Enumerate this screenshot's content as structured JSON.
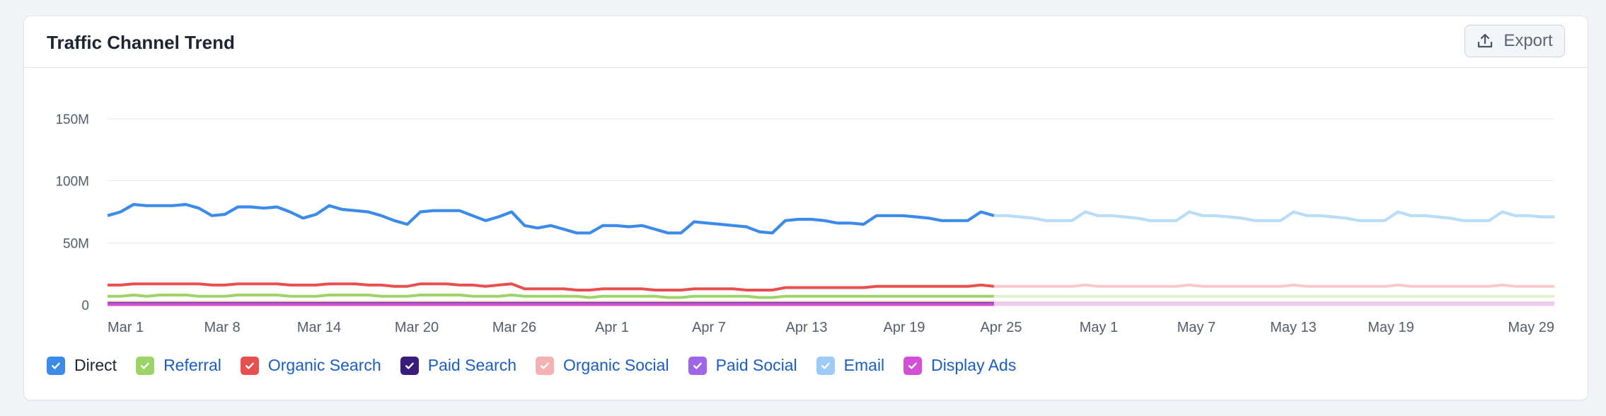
{
  "card": {
    "title": "Traffic Channel Trend",
    "export_label": "Export"
  },
  "chart_data": {
    "type": "line",
    "title": "Traffic Channel Trend",
    "xlabel": "",
    "ylabel": "",
    "ylim": [
      0,
      150000000
    ],
    "y_ticks": [
      "0",
      "50M",
      "100M",
      "150M"
    ],
    "x_ticks": [
      "Mar 1",
      "Mar 8",
      "Mar 14",
      "Mar 20",
      "Mar 26",
      "Apr 1",
      "Apr 7",
      "Apr 13",
      "Apr 19",
      "Apr 25",
      "May 1",
      "May 7",
      "May 13",
      "May 19",
      "May 29"
    ],
    "grid": true,
    "legend_position": "bottom-left",
    "x_start": "Mar 1",
    "x_end": "May 29",
    "split_point": "Apr 24",
    "note_styles": {
      "after_split": "faded"
    },
    "series": [
      {
        "name": "Direct",
        "color": "#3c8beb",
        "faded_color": "#b9dcf8",
        "checked": true,
        "values": [
          72,
          75,
          81,
          80,
          80,
          80,
          81,
          78,
          72,
          73,
          79,
          79,
          78,
          79,
          75,
          70,
          73,
          80,
          77,
          76,
          75,
          72,
          68,
          65,
          75,
          76,
          76,
          76,
          72,
          68,
          71,
          75,
          64,
          62,
          64,
          61,
          58,
          58,
          64,
          64,
          63,
          64,
          61,
          58,
          58,
          67,
          66,
          65,
          64,
          63,
          59,
          58,
          68,
          69,
          69,
          68,
          66,
          66,
          65,
          72,
          72,
          72,
          71,
          70,
          68,
          68,
          68,
          75,
          72,
          72,
          71,
          70,
          68,
          68,
          68,
          75,
          72,
          72,
          71,
          70,
          68,
          68,
          68,
          75,
          72,
          72,
          71,
          70,
          68,
          68,
          68,
          75,
          72,
          72,
          71,
          70,
          68,
          68,
          68,
          75,
          72,
          72,
          71,
          70,
          68,
          68,
          68,
          75,
          72,
          72,
          71,
          71
        ]
      },
      {
        "name": "Referral",
        "color": "#9cd468",
        "faded_color": "#e2f1d0",
        "checked": true,
        "values": [
          7,
          7,
          8,
          7,
          8,
          8,
          8,
          7,
          7,
          7,
          8,
          8,
          8,
          8,
          7,
          7,
          7,
          8,
          8,
          8,
          8,
          7,
          7,
          7,
          8,
          8,
          8,
          8,
          7,
          7,
          7,
          8,
          7,
          7,
          7,
          7,
          7,
          6,
          7,
          7,
          7,
          7,
          7,
          6,
          6,
          7,
          7,
          7,
          7,
          7,
          6,
          6,
          7,
          7,
          7,
          7,
          7,
          7,
          7,
          7,
          7,
          7,
          7,
          7,
          7,
          7,
          7,
          7,
          7,
          7,
          7,
          7,
          7,
          7,
          7,
          7,
          7,
          7,
          7,
          7,
          7,
          7,
          7,
          7,
          7,
          7,
          7,
          7,
          7,
          7,
          7,
          7,
          7,
          7,
          7,
          7,
          7,
          7,
          7,
          7,
          7,
          7,
          7,
          7,
          7,
          7,
          7,
          7,
          7,
          7,
          7,
          7
        ]
      },
      {
        "name": "Organic Search",
        "color": "#e8504f",
        "faded_color": "#f8c9c9",
        "checked": true,
        "values": [
          16,
          16,
          17,
          17,
          17,
          17,
          17,
          17,
          16,
          16,
          17,
          17,
          17,
          17,
          16,
          16,
          16,
          17,
          17,
          17,
          16,
          16,
          15,
          15,
          17,
          17,
          17,
          16,
          16,
          15,
          16,
          17,
          13,
          13,
          13,
          13,
          12,
          12,
          13,
          13,
          13,
          13,
          12,
          12,
          12,
          13,
          13,
          13,
          13,
          12,
          12,
          12,
          14,
          14,
          14,
          14,
          14,
          14,
          14,
          15,
          15,
          15,
          15,
          15,
          15,
          15,
          15,
          16,
          15,
          15,
          15,
          15,
          15,
          15,
          15,
          16,
          15,
          15,
          15,
          15,
          15,
          15,
          15,
          16,
          15,
          15,
          15,
          15,
          15,
          15,
          15,
          16,
          15,
          15,
          15,
          15,
          15,
          15,
          15,
          16,
          15,
          15,
          15,
          15,
          15,
          15,
          15,
          16,
          15,
          15,
          15,
          15
        ]
      },
      {
        "name": "Paid Search",
        "color": "#3a1d7a",
        "faded_color": "#cfc4e6",
        "checked": true,
        "values": [
          1,
          1,
          1,
          1,
          1,
          1,
          1,
          1,
          1,
          1,
          1,
          1,
          1,
          1,
          1,
          1,
          1,
          1,
          1,
          1,
          1,
          1,
          1,
          1,
          1,
          1,
          1,
          1,
          1,
          1,
          1,
          1,
          1,
          1,
          1,
          1,
          1,
          1,
          1,
          1,
          1,
          1,
          1,
          1,
          1,
          1,
          1,
          1,
          1,
          1,
          1,
          1,
          1,
          1,
          1,
          1,
          1,
          1,
          1,
          1,
          1,
          1,
          1,
          1,
          1,
          1,
          1,
          1,
          1,
          1,
          1,
          1,
          1,
          1,
          1,
          1,
          1,
          1,
          1,
          1,
          1,
          1,
          1,
          1,
          1,
          1,
          1,
          1,
          1,
          1,
          1,
          1,
          1,
          1,
          1,
          1,
          1,
          1,
          1,
          1,
          1,
          1,
          1,
          1,
          1,
          1,
          1,
          1,
          1,
          1,
          1,
          1
        ]
      },
      {
        "name": "Organic Social",
        "color": "#f4b2b2",
        "faded_color": "#fbe3e3",
        "checked": true,
        "values": [
          2,
          2,
          2,
          2,
          2,
          2,
          2,
          2,
          2,
          2,
          2,
          2,
          2,
          2,
          2,
          2,
          2,
          2,
          2,
          2,
          2,
          2,
          2,
          2,
          2,
          2,
          2,
          2,
          2,
          2,
          2,
          2,
          2,
          2,
          2,
          2,
          2,
          2,
          2,
          2,
          2,
          2,
          2,
          2,
          2,
          2,
          2,
          2,
          2,
          2,
          2,
          2,
          2,
          2,
          2,
          2,
          2,
          2,
          2,
          2,
          2,
          2,
          2,
          2,
          2,
          2,
          2,
          2,
          2,
          2,
          2,
          2,
          2,
          2,
          2,
          2,
          2,
          2,
          2,
          2,
          2,
          2,
          2,
          2,
          2,
          2,
          2,
          2,
          2,
          2,
          2,
          2,
          2,
          2,
          2,
          2,
          2,
          2,
          2,
          2,
          2,
          2,
          2,
          2,
          2,
          2,
          2,
          2,
          2,
          2,
          2,
          2
        ]
      },
      {
        "name": "Paid Social",
        "color": "#a066e8",
        "faded_color": "#e3d3f8",
        "checked": true,
        "values": [
          0.5,
          0.5,
          0.5,
          0.5,
          0.5,
          0.5,
          0.5,
          0.5,
          0.5,
          0.5,
          0.5,
          0.5,
          0.5,
          0.5,
          0.5,
          0.5,
          0.5,
          0.5,
          0.5,
          0.5,
          0.5,
          0.5,
          0.5,
          0.5,
          0.5,
          0.5,
          0.5,
          0.5,
          0.5,
          0.5,
          0.5,
          0.5,
          0.5,
          0.5,
          0.5,
          0.5,
          0.5,
          0.5,
          0.5,
          0.5,
          0.5,
          0.5,
          0.5,
          0.5,
          0.5,
          0.5,
          0.5,
          0.5,
          0.5,
          0.5,
          0.5,
          0.5,
          0.5,
          0.5,
          0.5,
          0.5,
          0.5,
          0.5,
          0.5,
          0.5,
          0.5,
          0.5,
          0.5,
          0.5,
          0.5,
          0.5,
          0.5,
          0.5,
          0.5,
          0.5,
          0.5,
          0.5,
          0.5,
          0.5,
          0.5,
          0.5,
          0.5,
          0.5,
          0.5,
          0.5,
          0.5,
          0.5,
          0.5,
          0.5,
          0.5,
          0.5,
          0.5,
          0.5,
          0.5,
          0.5,
          0.5,
          0.5,
          0.5,
          0.5,
          0.5,
          0.5,
          0.5,
          0.5,
          0.5,
          0.5,
          0.5,
          0.5,
          0.5,
          0.5,
          0.5,
          0.5,
          0.5,
          0.5,
          0.5,
          0.5,
          0.5,
          0.5
        ]
      },
      {
        "name": "Email",
        "color": "#9ecbf5",
        "faded_color": "#dcecfb",
        "checked": true,
        "values": [
          1,
          1,
          1,
          1,
          1,
          1,
          1,
          1,
          1,
          1,
          1,
          1,
          1,
          1,
          1,
          1,
          1,
          1,
          1,
          1,
          1,
          1,
          1,
          1,
          1,
          1,
          1,
          1,
          1,
          1,
          1,
          1,
          1,
          1,
          1,
          1,
          1,
          1,
          1,
          1,
          1,
          1,
          1,
          1,
          1,
          1,
          1,
          1,
          1,
          1,
          1,
          1,
          1,
          1,
          1,
          1,
          1,
          1,
          1,
          1,
          1,
          1,
          1,
          1,
          1,
          1,
          1,
          1,
          1,
          1,
          1,
          1,
          1,
          1,
          1,
          1,
          1,
          1,
          1,
          1,
          1,
          1,
          1,
          1,
          1,
          1,
          1,
          1,
          1,
          1,
          1,
          1,
          1,
          1,
          1,
          1,
          1,
          1,
          1,
          1,
          1,
          1,
          1,
          1,
          1,
          1,
          1,
          1,
          1,
          1,
          1,
          1
        ]
      },
      {
        "name": "Display Ads",
        "color": "#d34fd6",
        "faded_color": "#f3ccf3",
        "checked": true,
        "values": [
          0.3,
          0.3,
          0.3,
          0.3,
          0.3,
          0.3,
          0.3,
          0.3,
          0.3,
          0.3,
          0.3,
          0.3,
          0.3,
          0.3,
          0.3,
          0.3,
          0.3,
          0.3,
          0.3,
          0.3,
          0.3,
          0.3,
          0.3,
          0.3,
          0.3,
          0.3,
          0.3,
          0.3,
          0.3,
          0.3,
          0.3,
          0.3,
          0.3,
          0.3,
          0.3,
          0.3,
          0.3,
          0.3,
          0.3,
          0.3,
          0.3,
          0.3,
          0.3,
          0.3,
          0.3,
          0.3,
          0.3,
          0.3,
          0.3,
          0.3,
          0.3,
          0.3,
          0.3,
          0.3,
          0.3,
          0.3,
          0.3,
          0.3,
          0.3,
          0.3,
          0.3,
          0.3,
          0.3,
          0.3,
          0.3,
          0.3,
          0.3,
          0.3,
          0.3,
          0.3,
          0.3,
          0.3,
          0.3,
          0.3,
          0.3,
          0.3,
          0.3,
          0.3,
          0.3,
          0.3,
          0.3,
          0.3,
          0.3,
          0.3,
          0.3,
          0.3,
          0.3,
          0.3,
          0.3,
          0.3,
          0.3,
          0.3,
          0.3,
          0.3,
          0.3,
          0.3,
          0.3,
          0.3,
          0.3,
          0.3,
          0.3,
          0.3,
          0.3,
          0.3,
          0.3,
          0.3,
          0.3,
          0.3,
          0.3,
          0.3,
          0.3,
          0.3
        ]
      }
    ]
  },
  "legend": {
    "items": [
      {
        "label": "Direct",
        "color": "#3c8beb",
        "checked": true
      },
      {
        "label": "Referral",
        "color": "#9cd468",
        "checked": true
      },
      {
        "label": "Organic Search",
        "color": "#e8504f",
        "checked": true
      },
      {
        "label": "Paid Search",
        "color": "#3a1d7a",
        "checked": true
      },
      {
        "label": "Organic Social",
        "color": "#f4b2b2",
        "checked": true
      },
      {
        "label": "Paid Social",
        "color": "#a066e8",
        "checked": true
      },
      {
        "label": "Email",
        "color": "#9ecbf5",
        "checked": true
      },
      {
        "label": "Display Ads",
        "color": "#d34fd6",
        "checked": true
      }
    ]
  }
}
